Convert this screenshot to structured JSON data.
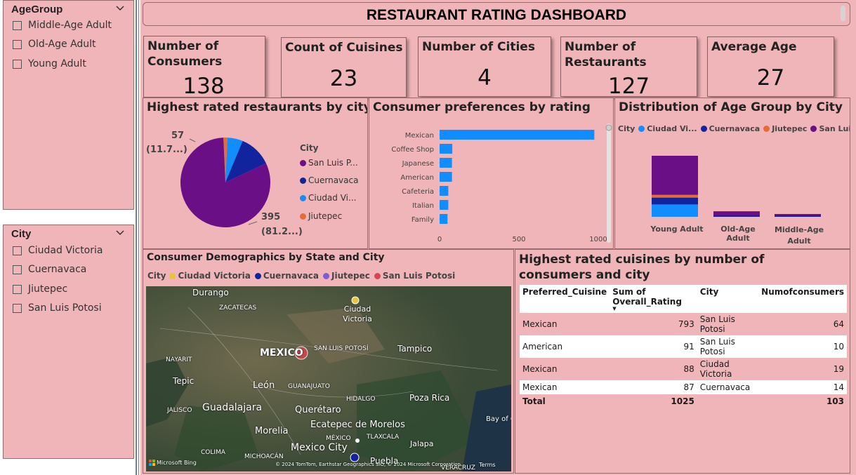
{
  "slicers": {
    "agegroup": {
      "title": "AgeGroup",
      "options": [
        "Middle-Age Adult",
        "Old-Age Adult",
        "Young Adult"
      ]
    },
    "city": {
      "title": "City",
      "options": [
        "Ciudad Victoria",
        "Cuernavaca",
        "Jiutepec",
        "San Luis Potosi"
      ]
    }
  },
  "header": {
    "title": "RESTAURANT RATING DASHBOARD"
  },
  "kpis": [
    {
      "label": "Number of Consumers",
      "value": "138"
    },
    {
      "label": "Count of Cuisines",
      "value": "23"
    },
    {
      "label": "Number of Cities",
      "value": "4"
    },
    {
      "label": "Number of Restaurants",
      "value": "127"
    },
    {
      "label": "Average Age",
      "value": "27"
    }
  ],
  "pie_visual": {
    "title": "Highest rated restaurants by city",
    "legend_title": "City",
    "legend": [
      "San Luis P...",
      "Cuernavaca",
      "Ciudad Vi...",
      "Jiutepec"
    ],
    "label_top_value": "57",
    "label_top_pct": "(11.7...)",
    "label_bottom_value": "395",
    "label_bottom_pct": "(81.2...)"
  },
  "bar_visual": {
    "title": "Consumer preferences by rating",
    "ticks": [
      "0",
      "500",
      "1000"
    ]
  },
  "stack_visual": {
    "title": "Distribution of Age Group by City",
    "legend_title": "City",
    "legend": [
      "Ciudad Vi...",
      "Cuernavaca",
      "Jiutepec",
      "San Luis ..."
    ],
    "categories": [
      "Young Adult",
      "Old-Age Adult",
      "Middle-Age Adult"
    ]
  },
  "map_visual": {
    "title": "Consumer Demographics by State and City",
    "legend_title": "City",
    "legend": [
      "Ciudad Victoria",
      "Cuernavaca",
      "Jiutepec",
      "San Luis Potosi"
    ],
    "labels": {
      "durango": "Durango",
      "zacatecas": "ZACATECAS",
      "ciudad_victoria": "Ciudad Victoria",
      "mexico": "MEXICO",
      "slp": "SAN LUIS POTOSÍ",
      "tampico": "Tampico",
      "nayarit": "NAYARIT",
      "tepic": "Tepic",
      "leon": "León",
      "guanajuato": "GUANAJUATO",
      "hidalgo": "HIDALGO",
      "poza_rica": "Poza Rica",
      "jalisco": "JALISCO",
      "guadalajara": "Guadalajara",
      "queretaro": "Querétaro",
      "bay": "Bay of C",
      "morelia": "Morelia",
      "ecatepec": "Ecatepec de Morelos",
      "mexico_state": "MÉXICO",
      "tlaxcala": "TLAXCALA",
      "jalapa": "Jalapa",
      "colima": "COLIMA",
      "michoacan": "MICHOACÁN",
      "mexico_city": "Mexico City",
      "puebla": "Puebla",
      "veracruz": "VERACRUZ"
    },
    "attribution": "Microsoft Bing",
    "copyright": "© 2024 TomTom, Earthstar Geographics SIO, © 2024 Microsoft Corporation",
    "terms": "Terms"
  },
  "table_visual": {
    "title": "Highest rated cuisines by number of consumers and city",
    "columns": [
      "Preferred_Cuisine",
      "Sum of Overall_Rating",
      "City",
      "Numofconsumers"
    ],
    "rows": [
      [
        "Mexican",
        "793",
        "San Luis Potosi",
        "64"
      ],
      [
        "American",
        "91",
        "San Luis Potosi",
        "10"
      ],
      [
        "Mexican",
        "88",
        "Ciudad Victoria",
        "19"
      ],
      [
        "Mexican",
        "87",
        "Cuernavaca",
        "14"
      ]
    ],
    "total": [
      "Total",
      "1025",
      "",
      "103"
    ]
  },
  "colors": {
    "panel": "#f0b5b8",
    "san_luis": "#6a0f85",
    "cuernavaca": "#12239e",
    "ciudad_victoria": "#118dff",
    "jiutepec": "#e66c37",
    "map_ciudad": "#e8c33c",
    "map_jiutepec": "#7f5bd4",
    "map_slp": "#d64550"
  },
  "chart_data": [
    {
      "type": "pie",
      "categories": [
        "San Luis P...",
        "Cuernavaca",
        "Ciudad Vi...",
        "Jiutepec"
      ],
      "values": [
        395,
        57,
        27,
        7
      ],
      "title": "Highest rated restaurants by city"
    },
    {
      "type": "bar",
      "orientation": "horizontal",
      "categories": [
        "Mexican",
        "Coffee Shop",
        "Japanese",
        "American",
        "Cafeteria",
        "Italian",
        "Family"
      ],
      "values": [
        975,
        80,
        78,
        78,
        55,
        55,
        50
      ],
      "xlim": [
        0,
        1000
      ],
      "title": "Consumer preferences by rating"
    },
    {
      "type": "bar",
      "stacked": true,
      "categories": [
        "Young Adult",
        "Old-Age Adult",
        "Middle-Age Adult"
      ],
      "series": [
        {
          "name": "Ciudad Vi...",
          "values": [
            18,
            0,
            0
          ]
        },
        {
          "name": "Cuernavaca",
          "values": [
            10,
            1,
            1
          ]
        },
        {
          "name": "Jiutepec",
          "values": [
            4,
            0,
            0
          ]
        },
        {
          "name": "San Luis ...",
          "values": [
            57,
            6,
            1
          ]
        }
      ],
      "title": "Distribution of Age Group by City"
    }
  ]
}
